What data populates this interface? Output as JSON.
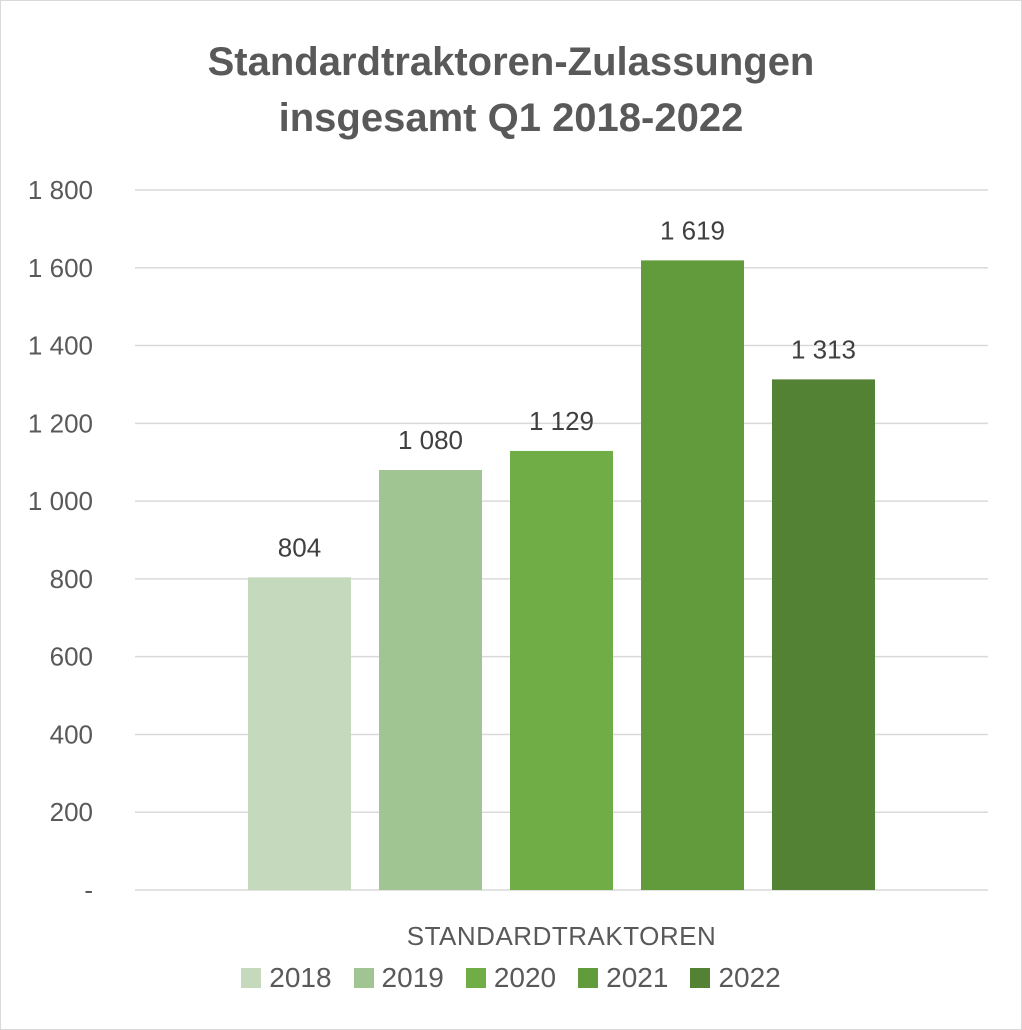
{
  "chart_data": {
    "type": "bar",
    "title_line1": "Standardtraktoren-Zulassungen",
    "title_line2": "insgesamt Q1 2018-2022",
    "category_label": "STANDARDTRAKTOREN",
    "ylim": [
      0,
      1800
    ],
    "yticks": [
      {
        "value": 0,
        "label": "-"
      },
      {
        "value": 200,
        "label": "200"
      },
      {
        "value": 400,
        "label": "400"
      },
      {
        "value": 600,
        "label": "600"
      },
      {
        "value": 800,
        "label": "800"
      },
      {
        "value": 1000,
        "label": "1 000"
      },
      {
        "value": 1200,
        "label": "1 200"
      },
      {
        "value": 1400,
        "label": "1 400"
      },
      {
        "value": 1600,
        "label": "1 600"
      },
      {
        "value": 1800,
        "label": "1 800"
      }
    ],
    "grid": true,
    "legend_position": "bottom",
    "series": [
      {
        "name": "2018",
        "value": 804,
        "label": "804",
        "color": "#c5d9bd"
      },
      {
        "name": "2019",
        "value": 1080,
        "label": "1 080",
        "color": "#a1c592"
      },
      {
        "name": "2020",
        "value": 1129,
        "label": "1 129",
        "color": "#70ad47"
      },
      {
        "name": "2021",
        "value": 1619,
        "label": "1 619",
        "color": "#629b3c"
      },
      {
        "name": "2022",
        "value": 1313,
        "label": "1 313",
        "color": "#548235"
      }
    ]
  }
}
